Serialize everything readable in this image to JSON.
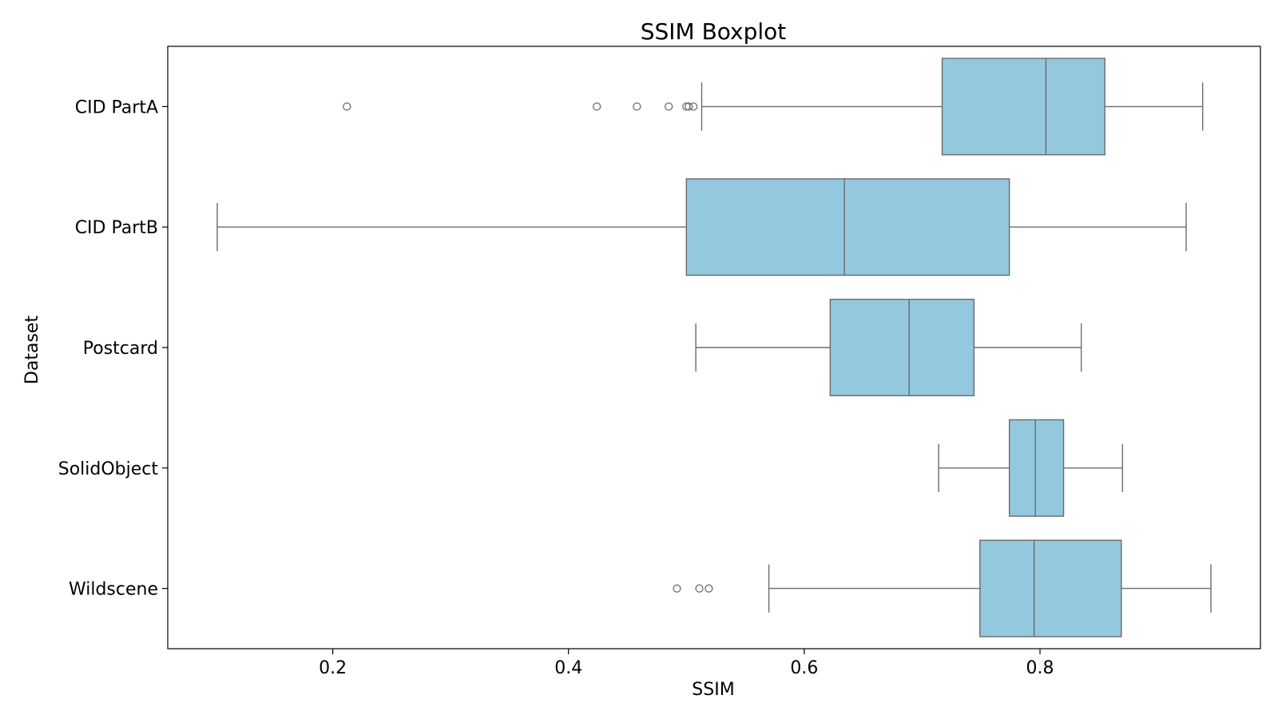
{
  "chart_data": {
    "type": "boxplot",
    "orientation": "horizontal",
    "title": "SSIM Boxplot",
    "xlabel": "SSIM",
    "ylabel": "Dataset",
    "xlim": [
      0.06,
      0.987
    ],
    "xticks": [
      0.2,
      0.4,
      0.6,
      0.8
    ],
    "xtick_labels": [
      "0.2",
      "0.4",
      "0.6",
      "0.8"
    ],
    "grid": false,
    "box_color": "#94c8de",
    "line_color": "#6b6b6b",
    "categories": [
      "CID PartA",
      "CID PartB",
      "Postcard",
      "SolidObject",
      "Wildscene"
    ],
    "boxes": [
      {
        "category": "CID PartA",
        "whisker_low": 0.513,
        "q1": 0.717,
        "median": 0.805,
        "q3": 0.855,
        "whisker_high": 0.938,
        "outliers": [
          0.212,
          0.424,
          0.458,
          0.485,
          0.5,
          0.502,
          0.506
        ]
      },
      {
        "category": "CID PartB",
        "whisker_low": 0.102,
        "q1": 0.5,
        "median": 0.634,
        "q3": 0.774,
        "whisker_high": 0.924,
        "outliers": []
      },
      {
        "category": "Postcard",
        "whisker_low": 0.508,
        "q1": 0.622,
        "median": 0.689,
        "q3": 0.744,
        "whisker_high": 0.835,
        "outliers": []
      },
      {
        "category": "SolidObject",
        "whisker_low": 0.714,
        "q1": 0.774,
        "median": 0.796,
        "q3": 0.82,
        "whisker_high": 0.87,
        "outliers": []
      },
      {
        "category": "Wildscene",
        "whisker_low": 0.57,
        "q1": 0.749,
        "median": 0.795,
        "q3": 0.869,
        "whisker_high": 0.945,
        "outliers": [
          0.492,
          0.511,
          0.519
        ]
      }
    ]
  }
}
